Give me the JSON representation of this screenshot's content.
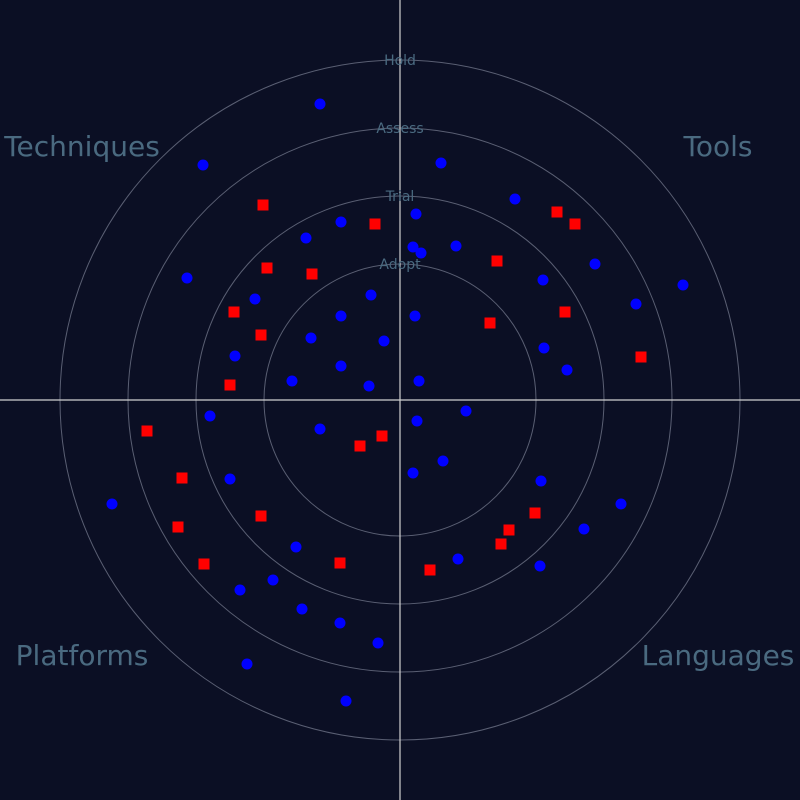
{
  "chart_data": {
    "type": "scatter",
    "title": "",
    "rings": [
      "Adopt",
      "Trial",
      "Assess",
      "Hold"
    ],
    "quadrants": [
      "Techniques",
      "Tools",
      "Platforms",
      "Languages"
    ],
    "axis_range": {
      "x": [
        -400,
        400
      ],
      "y": [
        -400,
        400
      ]
    },
    "grid": true,
    "colors": {
      "background": "#0b0f24",
      "rings": "#5a5f73",
      "axes": "#d0d0d0",
      "label": "#4a6a80"
    },
    "series": [
      {
        "marker": "circle",
        "color": "#0000ff",
        "points": [
          [
            -80,
            296
          ],
          [
            -197,
            235
          ],
          [
            -213,
            122
          ],
          [
            -59,
            178
          ],
          [
            -94,
            162
          ],
          [
            -145,
            101
          ],
          [
            -29,
            105
          ],
          [
            -165,
            44
          ],
          [
            -89,
            62
          ],
          [
            -59,
            84
          ],
          [
            -16,
            59
          ],
          [
            -59,
            34
          ],
          [
            -108,
            19
          ],
          [
            -31,
            14
          ],
          [
            41,
            237
          ],
          [
            16,
            186
          ],
          [
            13,
            153
          ],
          [
            56,
            154
          ],
          [
            21,
            147
          ],
          [
            115,
            201
          ],
          [
            195,
            136
          ],
          [
            143,
            120
          ],
          [
            236,
            96
          ],
          [
            283,
            115
          ],
          [
            15,
            84
          ],
          [
            144,
            52
          ],
          [
            167,
            30
          ],
          [
            19,
            19
          ],
          [
            -190,
            -16
          ],
          [
            -80,
            -29
          ],
          [
            66,
            -11
          ],
          [
            17,
            -21
          ],
          [
            43,
            -61
          ],
          [
            13,
            -73
          ],
          [
            -170,
            -79
          ],
          [
            -288,
            -104
          ],
          [
            -104,
            -147
          ],
          [
            141,
            -81
          ],
          [
            184,
            -129
          ],
          [
            221,
            -104
          ],
          [
            -127,
            -180
          ],
          [
            58,
            -159
          ],
          [
            -160,
            -190
          ],
          [
            140,
            -166
          ],
          [
            -98,
            -209
          ],
          [
            -60,
            -223
          ],
          [
            -22,
            -243
          ],
          [
            -153,
            -264
          ],
          [
            -54,
            -301
          ]
        ]
      },
      {
        "marker": "square",
        "color": "#ff0000",
        "points": [
          [
            -137,
            195
          ],
          [
            -25,
            176
          ],
          [
            157,
            188
          ],
          [
            175,
            176
          ],
          [
            -133,
            132
          ],
          [
            -88,
            126
          ],
          [
            97,
            139
          ],
          [
            -166,
            88
          ],
          [
            -139,
            65
          ],
          [
            90,
            77
          ],
          [
            165,
            88
          ],
          [
            241,
            43
          ],
          [
            -170,
            15
          ],
          [
            -18,
            -36
          ],
          [
            -40,
            -46
          ],
          [
            -253,
            -31
          ],
          [
            -218,
            -78
          ],
          [
            -222,
            -127
          ],
          [
            -139,
            -116
          ],
          [
            -196,
            -164
          ],
          [
            -60,
            -163
          ],
          [
            135,
            -113
          ],
          [
            109,
            -130
          ],
          [
            101,
            -144
          ],
          [
            30,
            -170
          ]
        ]
      }
    ]
  }
}
